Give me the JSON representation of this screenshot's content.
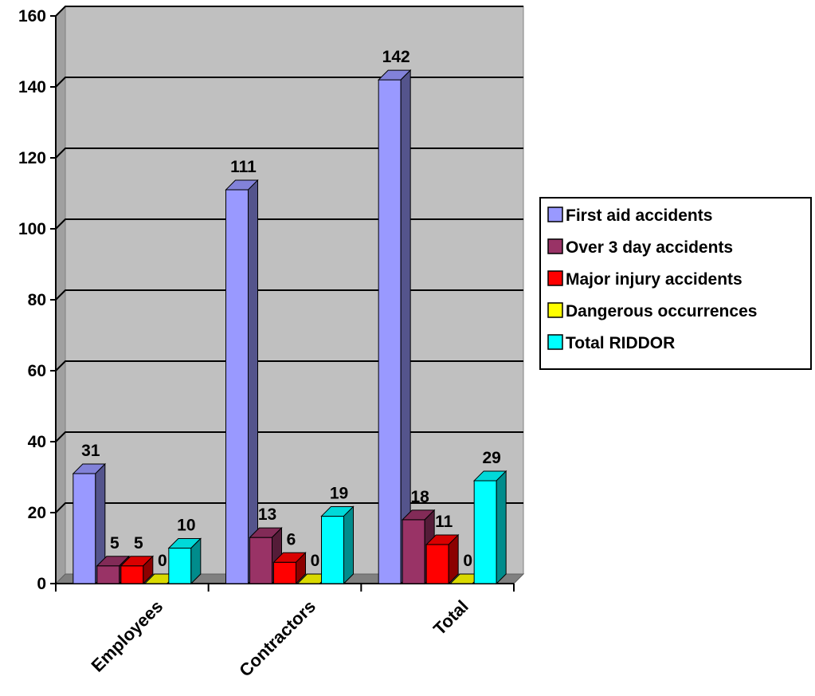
{
  "chart_data": {
    "type": "bar",
    "categories": [
      "Employees",
      "Contractors",
      "Total"
    ],
    "series": [
      {
        "name": "First aid accidents",
        "values": [
          31,
          111,
          142
        ],
        "color": "#9999FF"
      },
      {
        "name": "Over 3 day accidents",
        "values": [
          5,
          13,
          18
        ],
        "color": "#993366"
      },
      {
        "name": "Major injury accidents",
        "values": [
          5,
          6,
          11
        ],
        "color": "#FF0000"
      },
      {
        "name": "Dangerous occurrences",
        "values": [
          0,
          0,
          0
        ],
        "color": "#FFFF00"
      },
      {
        "name": "Total RIDDOR",
        "values": [
          10,
          19,
          29
        ],
        "color": "#00FFFF"
      }
    ],
    "y_ticks": [
      "0",
      "20",
      "40",
      "60",
      "80",
      "100",
      "120",
      "140",
      "160"
    ],
    "ylim": [
      0,
      160
    ],
    "grid": true,
    "legend_position": "right",
    "data_labels": true,
    "wall_color": "#C0C0C0"
  }
}
